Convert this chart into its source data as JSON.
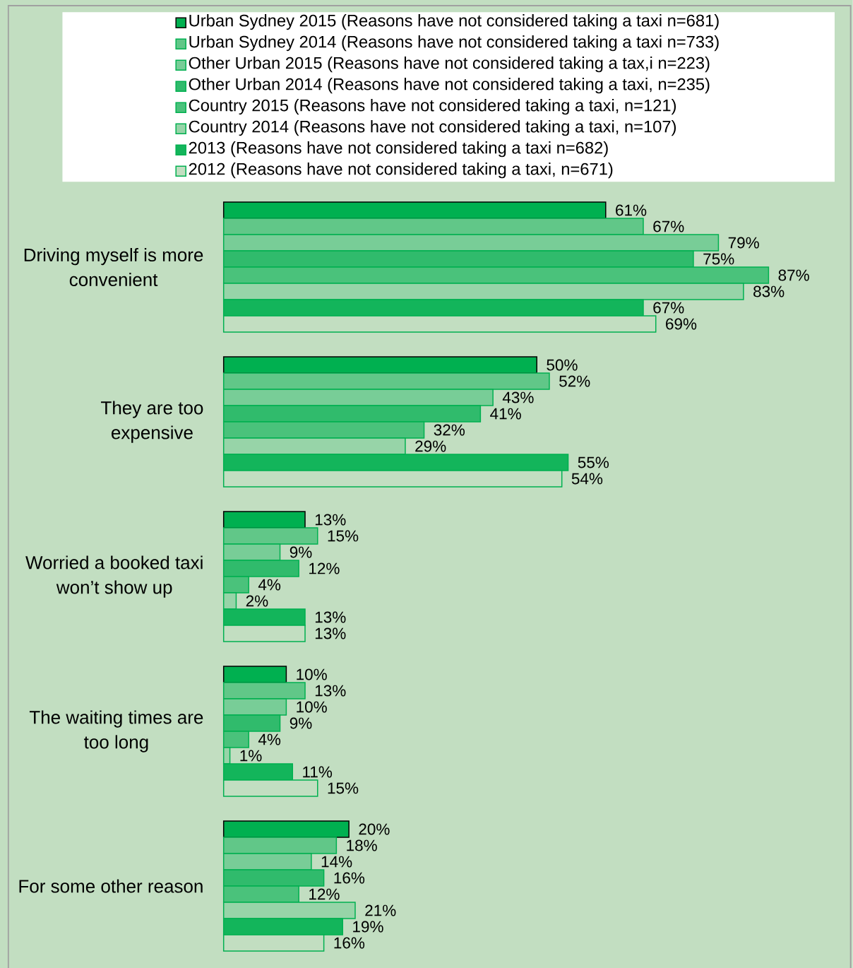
{
  "chart_data": {
    "type": "bar",
    "orientation": "horizontal",
    "categories": [
      "Driving myself is more convenient",
      "They are too expensive",
      "Worried a booked taxi won’t show up",
      "The waiting times are too long",
      "For some other reason"
    ],
    "series": [
      {
        "name": "Urban Sydney 2015 (Reasons have not considered taking a taxi n=681)",
        "color": "#00b050",
        "values": [
          61,
          50,
          13,
          10,
          20
        ],
        "value_labels": [
          "61%",
          "50%",
          "13%",
          "10%",
          "20%"
        ]
      },
      {
        "name": "Urban Sydney 2014 (Reasons have not considered taking a taxi n=733)",
        "color": "#61c788",
        "values": [
          67,
          52,
          15,
          13,
          18
        ],
        "value_labels": [
          "67%",
          "52%",
          "15%",
          "13%",
          "18%"
        ]
      },
      {
        "name": "Other Urban 2015 (Reasons have not considered taking a tax,i n=223)",
        "color": "#78cd97",
        "values": [
          79,
          43,
          9,
          10,
          14
        ],
        "value_labels": [
          "79%",
          "43%",
          "9%",
          "10%",
          "14%"
        ]
      },
      {
        "name": "Other Urban 2014 (Reasons have not considered taking a taxi, n=235)",
        "color": "#30bb6c",
        "values": [
          75,
          41,
          12,
          9,
          16
        ],
        "value_labels": [
          "75%",
          "41%",
          "12%",
          "9%",
          "16%"
        ]
      },
      {
        "name": "Country 2015 (Reasons have not considered taking a taxi, n=121)",
        "color": "#4ac27b",
        "values": [
          87,
          32,
          4,
          4,
          12
        ],
        "value_labels": [
          "87%",
          "32%",
          "4%",
          "4%",
          "12%"
        ]
      },
      {
        "name": "Country 2014 (Reasons have not considered taking a taxi, n=107)",
        "color": "#97d4a8",
        "values": [
          83,
          29,
          2,
          1,
          21
        ],
        "value_labels": [
          "83%",
          "29%",
          "2%",
          "1%",
          "21%"
        ]
      },
      {
        "name": "2013 (Reasons have not considered taking a taxi n=682)",
        "color": "#13b55b",
        "values": [
          67,
          55,
          13,
          11,
          19
        ],
        "value_labels": [
          "67%",
          "55%",
          "13%",
          "11%",
          "19%"
        ]
      },
      {
        "name": "2012 (Reasons have not considered taking a taxi, n=671)",
        "color": "#00b050",
        "values": [
          69,
          54,
          13,
          15,
          16
        ],
        "value_labels": [
          "69%",
          "54%",
          "13%",
          "15%",
          "16%"
        ]
      }
    ],
    "xlim": [
      0,
      100
    ],
    "legend": "top",
    "tick_labels": "y"
  }
}
